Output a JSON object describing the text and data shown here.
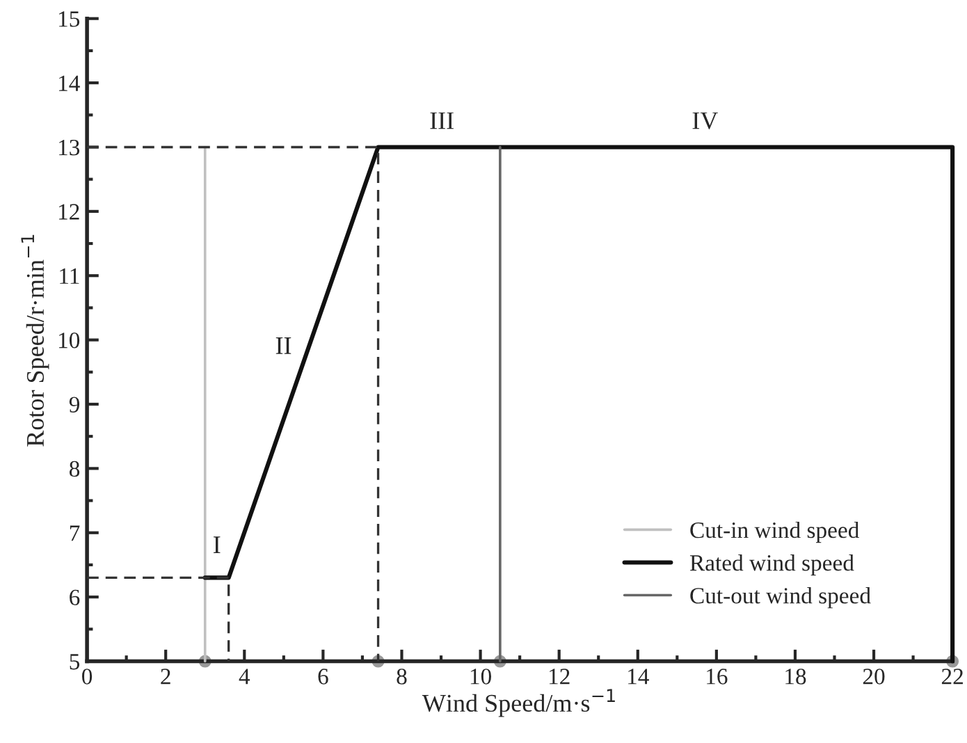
{
  "chart_data": {
    "type": "line",
    "xlabel": "Wind Speed/m·s$^{−1}$",
    "ylabel": "Rotor Speed/r·min$^{−1}$",
    "xlim": [
      0,
      22
    ],
    "xticks": [
      0,
      2,
      4,
      6,
      8,
      10,
      12,
      14,
      16,
      18,
      20,
      22
    ],
    "ylim": [
      5,
      15
    ],
    "yticks": [
      5,
      6,
      7,
      8,
      9,
      10,
      11,
      12,
      13,
      14,
      15
    ],
    "series": [
      {
        "name": "Cut-in wind speed",
        "color": "#c0c0c0",
        "x": [
          3,
          3
        ],
        "values": [
          5,
          13
        ]
      },
      {
        "name": "Rated wind speed",
        "color": "#111111",
        "x": [
          3,
          3.6,
          7.4,
          22,
          22
        ],
        "values": [
          6.3,
          6.3,
          13,
          13,
          5
        ]
      },
      {
        "name": "Cut-out wind speed",
        "color": "#666666",
        "x": [
          10.5,
          10.5
        ],
        "values": [
          5,
          13
        ]
      },
      {
        "color": "#333333",
        "x": [
          0,
          3.6,
          3.6
        ],
        "values": [
          6.3,
          6.3,
          5
        ],
        "line_style": "dashed"
      },
      {
        "color": "#333333",
        "x": [
          0,
          7.4,
          7.4
        ],
        "values": [
          13,
          13,
          5
        ],
        "line_style": "dashed"
      },
      {
        "type": "scatter",
        "color": "#9a9a9a",
        "marker": "circle",
        "x": [
          3,
          7.4,
          10.5,
          22
        ],
        "values": [
          5,
          5,
          5,
          5
        ]
      }
    ],
    "annotations": [
      "I",
      "II",
      "III",
      "IV"
    ],
    "legend": "bottom right",
    "grid": false
  }
}
